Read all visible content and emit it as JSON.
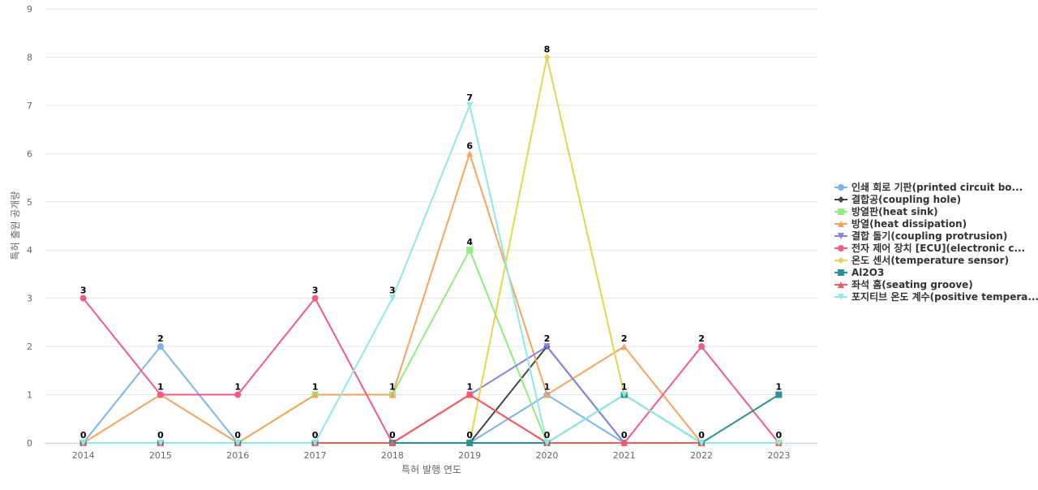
{
  "chart_data": {
    "type": "line",
    "title": "",
    "xlabel": "특허 발행 연도",
    "ylabel": "특허 출원 공개량",
    "x": [
      "2014",
      "2015",
      "2016",
      "2017",
      "2018",
      "2019",
      "2020",
      "2021",
      "2022",
      "2023"
    ],
    "ylim": [
      0,
      9
    ],
    "yticks": [
      0,
      1,
      2,
      3,
      4,
      5,
      6,
      7,
      8,
      9
    ],
    "grid": true,
    "legend_position": "right",
    "series": [
      {
        "name": "인쇄 회로 기판(printed circuit bo...",
        "color": "#7cb5ec",
        "marker": "circle",
        "values": [
          0,
          2,
          0,
          0,
          0,
          0,
          1,
          0,
          0,
          0
        ]
      },
      {
        "name": "결합공(coupling hole)",
        "color": "#434348",
        "marker": "diamond",
        "values": [
          0,
          0,
          0,
          0,
          0,
          0,
          2,
          0,
          0,
          0
        ]
      },
      {
        "name": "방열판(heat sink)",
        "color": "#90ed7d",
        "marker": "square",
        "values": [
          0,
          0,
          0,
          1,
          1,
          4,
          0,
          1,
          0,
          0
        ]
      },
      {
        "name": "방열(heat dissipation)",
        "color": "#f7a35c",
        "marker": "triangle",
        "values": [
          0,
          1,
          0,
          1,
          1,
          6,
          1,
          2,
          0,
          0
        ]
      },
      {
        "name": "결합 돌기(coupling protrusion)",
        "color": "#8085e9",
        "marker": "triangle-down",
        "values": [
          0,
          0,
          0,
          0,
          0,
          1,
          2,
          0,
          0,
          0
        ]
      },
      {
        "name": "전자 제어 장치 [ECU](electronic c...",
        "color": "#f15c80",
        "marker": "circle",
        "values": [
          3,
          1,
          1,
          3,
          0,
          1,
          0,
          0,
          2,
          0
        ]
      },
      {
        "name": "온도 센서(temperature sensor)",
        "color": "#e4d354",
        "marker": "diamond",
        "values": [
          0,
          0,
          0,
          0,
          0,
          0,
          8,
          1,
          0,
          0
        ]
      },
      {
        "name": "Al2O3",
        "color": "#2b908f",
        "marker": "square",
        "values": [
          0,
          0,
          0,
          0,
          0,
          0,
          0,
          1,
          0,
          1
        ]
      },
      {
        "name": "좌석 홈(seating groove)",
        "color": "#f45b5b",
        "marker": "triangle",
        "values": [
          0,
          0,
          0,
          0,
          0,
          1,
          0,
          0,
          0,
          0
        ]
      },
      {
        "name": "포지티브 온도 계수(positive tempera...",
        "color": "#91e8e1",
        "marker": "triangle-down",
        "values": [
          0,
          0,
          0,
          0,
          3,
          7,
          0,
          1,
          0,
          0
        ]
      }
    ],
    "data_labels": [
      {
        "x": "2014",
        "value": 0
      },
      {
        "x": "2014",
        "value": 3
      },
      {
        "x": "2015",
        "value": 0
      },
      {
        "x": "2015",
        "value": 1
      },
      {
        "x": "2015",
        "value": 2
      },
      {
        "x": "2016",
        "value": 0
      },
      {
        "x": "2016",
        "value": 1
      },
      {
        "x": "2017",
        "value": 0
      },
      {
        "x": "2017",
        "value": 1
      },
      {
        "x": "2017",
        "value": 3
      },
      {
        "x": "2018",
        "value": 0
      },
      {
        "x": "2018",
        "value": 1
      },
      {
        "x": "2018",
        "value": 3
      },
      {
        "x": "2019",
        "value": 0
      },
      {
        "x": "2019",
        "value": 1
      },
      {
        "x": "2019",
        "value": 4
      },
      {
        "x": "2019",
        "value": 6
      },
      {
        "x": "2019",
        "value": 7
      },
      {
        "x": "2020",
        "value": 0
      },
      {
        "x": "2020",
        "value": 1
      },
      {
        "x": "2020",
        "value": 2
      },
      {
        "x": "2020",
        "value": 8
      },
      {
        "x": "2021",
        "value": 0
      },
      {
        "x": "2021",
        "value": 1
      },
      {
        "x": "2021",
        "value": 2
      },
      {
        "x": "2022",
        "value": 0
      },
      {
        "x": "2022",
        "value": 2
      },
      {
        "x": "2023",
        "value": 0
      },
      {
        "x": "2023",
        "value": 1
      }
    ]
  }
}
